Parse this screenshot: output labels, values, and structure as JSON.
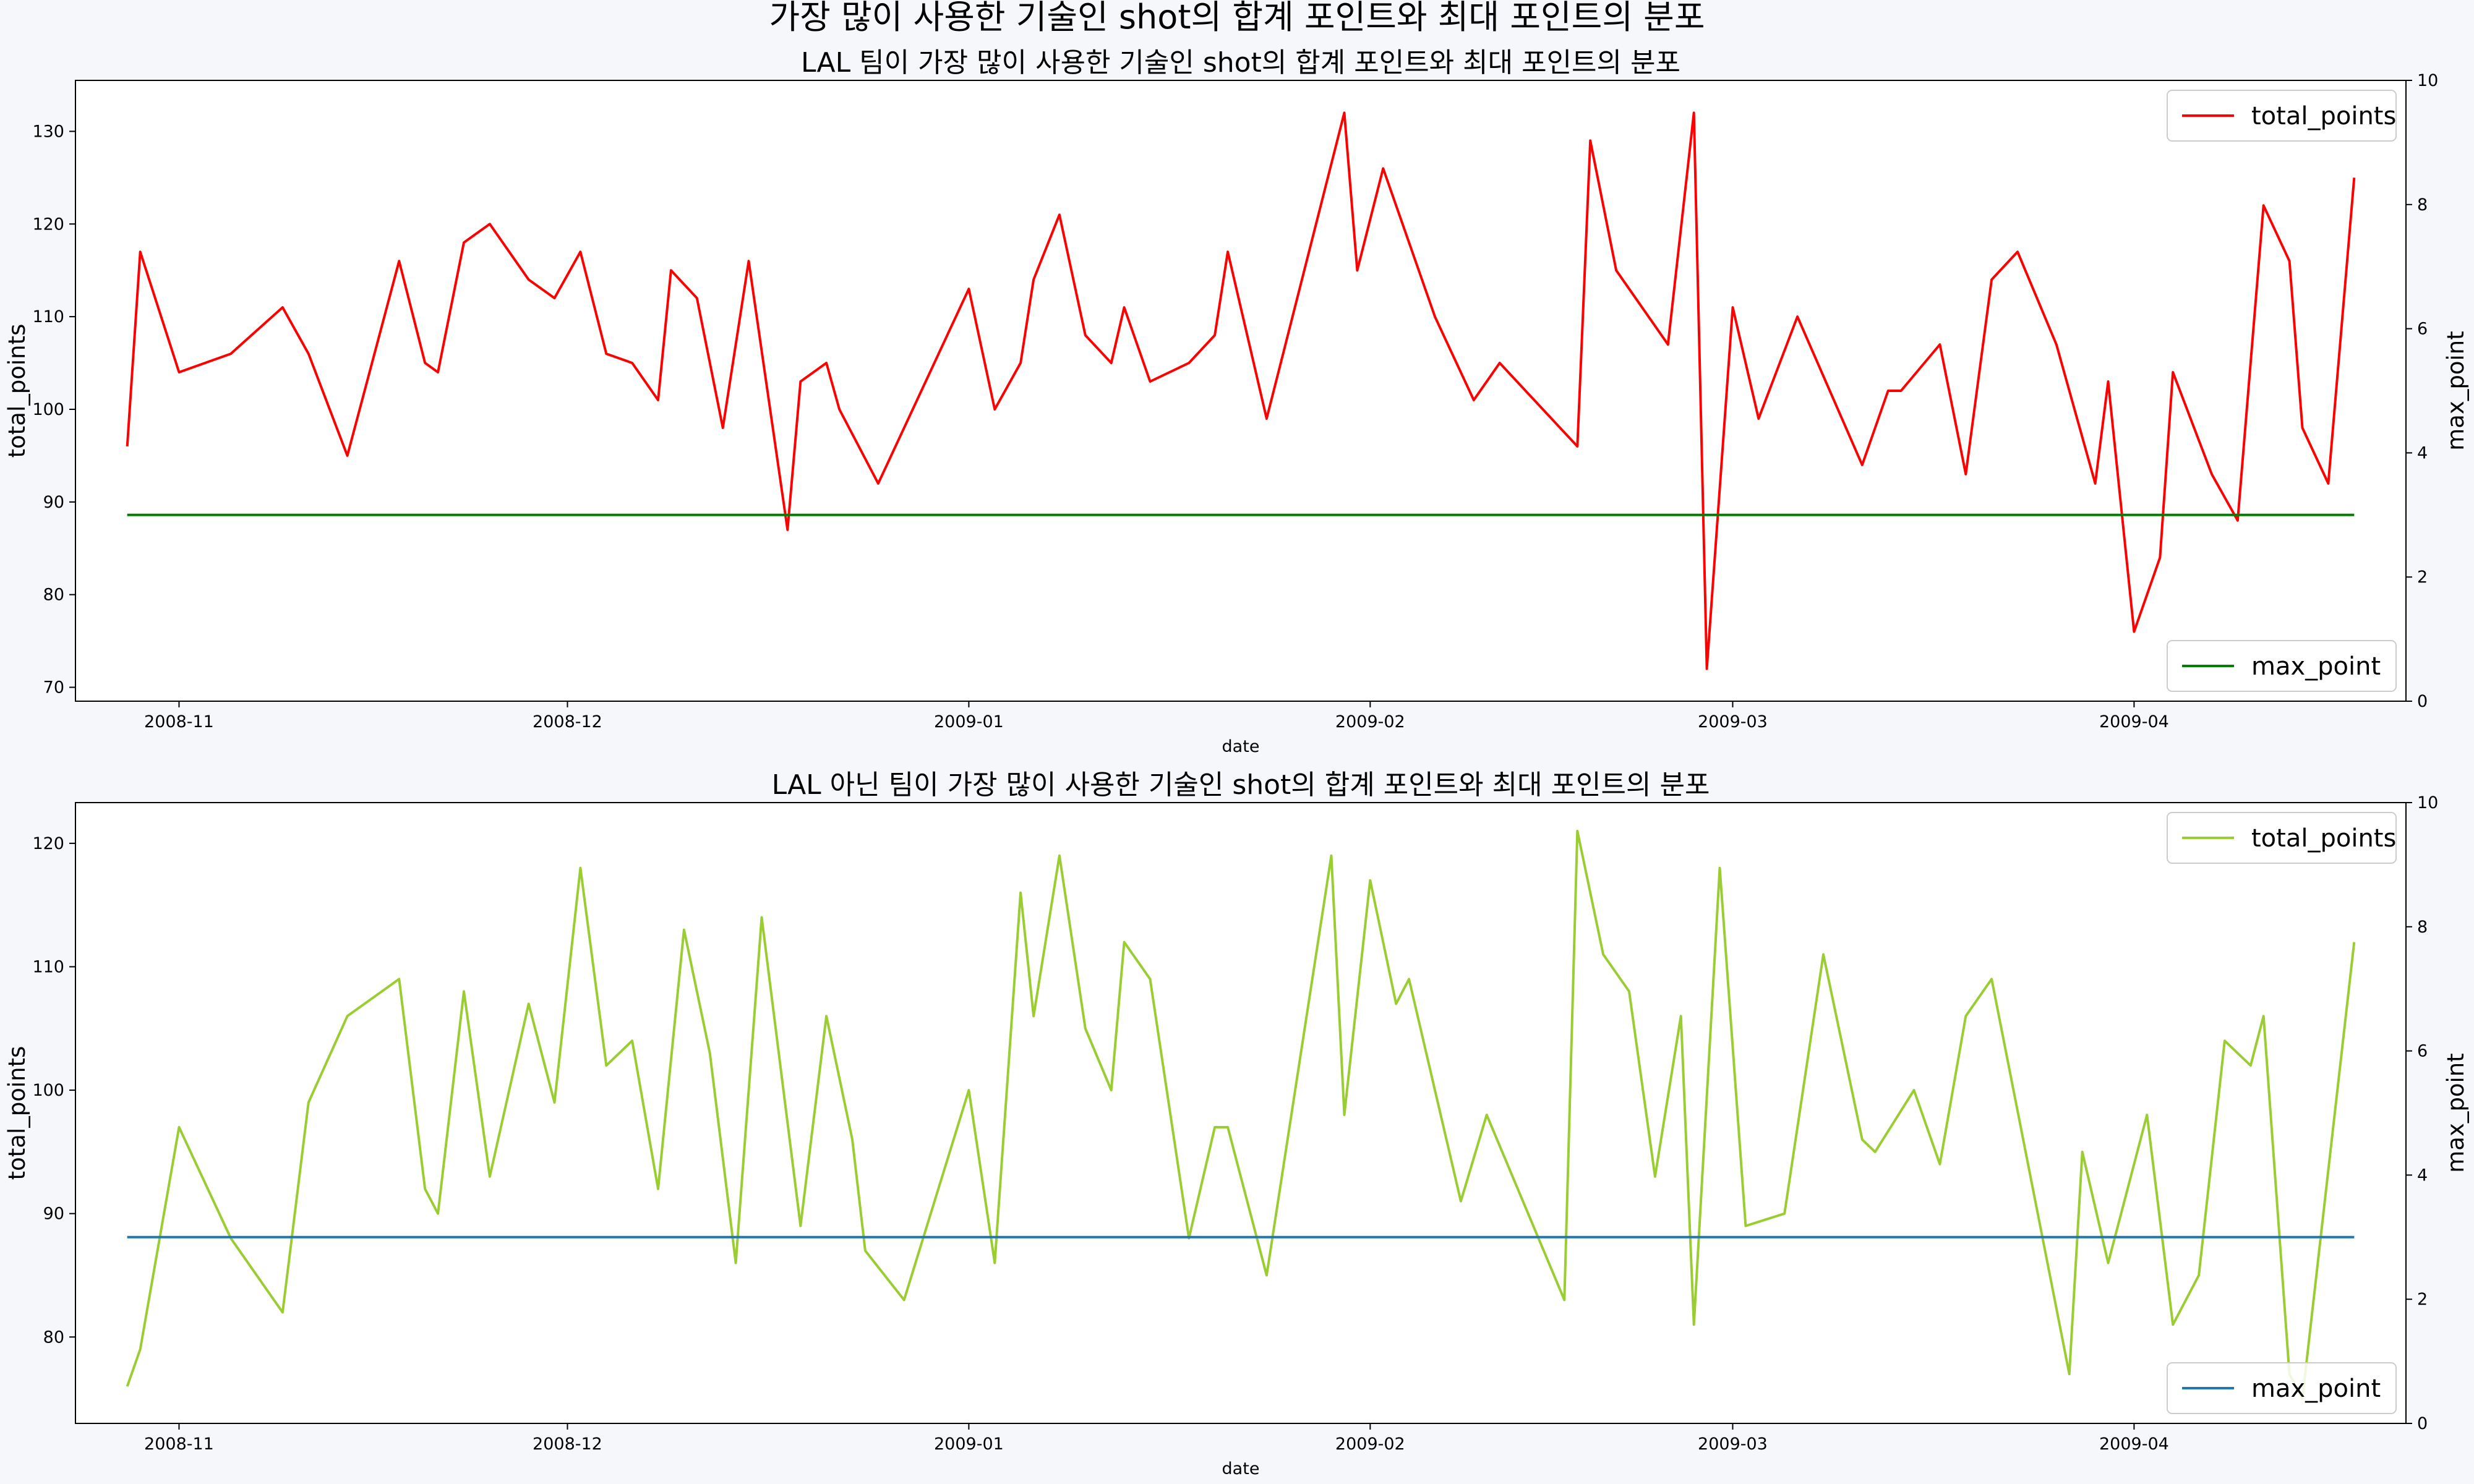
{
  "figure": {
    "suptitle": "가장 많이 사용한 기술인 shot의 합계 포인트와 최대 포인트의 분포",
    "background": "#f5f7fa"
  },
  "chart_data": [
    {
      "type": "line",
      "title": "LAL 팀이 가장 많이 사용한 기술인 shot의 합계 포인트와 최대 포인트의 분포",
      "xlabel": "date",
      "ylabel": "total_points",
      "ylabel_right": "max_point",
      "grid": false,
      "x_type": "date",
      "xlim": [
        "2008-10-24",
        "2009-04-22"
      ],
      "ylim": [
        68.5,
        135.5
      ],
      "yticks": [
        70,
        80,
        90,
        100,
        110,
        120,
        130
      ],
      "ylim_right": [
        0,
        10
      ],
      "yticks_right": [
        0,
        2,
        4,
        6,
        8,
        10
      ],
      "xticks": [
        {
          "date": "2008-11-01",
          "label": "2008-11"
        },
        {
          "date": "2008-12-01",
          "label": "2008-12"
        },
        {
          "date": "2009-01-01",
          "label": "2009-01"
        },
        {
          "date": "2009-02-01",
          "label": "2009-02"
        },
        {
          "date": "2009-03-01",
          "label": "2009-03"
        },
        {
          "date": "2009-04-01",
          "label": "2009-04"
        }
      ],
      "series": [
        {
          "name": "total_points",
          "axis": "left",
          "color": "#ff0000",
          "legend_position": "upper right",
          "points": [
            [
              "2008-10-28",
              96
            ],
            [
              "2008-10-29",
              117
            ],
            [
              "2008-11-01",
              104
            ],
            [
              "2008-11-05",
              106
            ],
            [
              "2008-11-09",
              111
            ],
            [
              "2008-11-11",
              106
            ],
            [
              "2008-11-14",
              95
            ],
            [
              "2008-11-18",
              116
            ],
            [
              "2008-11-20",
              105
            ],
            [
              "2008-11-21",
              104
            ],
            [
              "2008-11-23",
              118
            ],
            [
              "2008-11-25",
              120
            ],
            [
              "2008-11-28",
              114
            ],
            [
              "2008-11-30",
              112
            ],
            [
              "2008-12-02",
              117
            ],
            [
              "2008-12-04",
              106
            ],
            [
              "2008-12-06",
              105
            ],
            [
              "2008-12-08",
              101
            ],
            [
              "2008-12-09",
              115
            ],
            [
              "2008-12-11",
              112
            ],
            [
              "2008-12-13",
              98
            ],
            [
              "2008-12-15",
              116
            ],
            [
              "2008-12-18",
              87
            ],
            [
              "2008-12-19",
              103
            ],
            [
              "2008-12-21",
              105
            ],
            [
              "2008-12-22",
              100
            ],
            [
              "2008-12-25",
              92
            ],
            [
              "2009-01-01",
              113
            ],
            [
              "2009-01-03",
              100
            ],
            [
              "2009-01-05",
              105
            ],
            [
              "2009-01-06",
              114
            ],
            [
              "2009-01-08",
              121
            ],
            [
              "2009-01-10",
              108
            ],
            [
              "2009-01-12",
              105
            ],
            [
              "2009-01-13",
              111
            ],
            [
              "2009-01-15",
              103
            ],
            [
              "2009-01-18",
              105
            ],
            [
              "2009-01-20",
              108
            ],
            [
              "2009-01-21",
              117
            ],
            [
              "2009-01-24",
              99
            ],
            [
              "2009-01-30",
              132
            ],
            [
              "2009-01-31",
              115
            ],
            [
              "2009-02-02",
              126
            ],
            [
              "2009-02-06",
              110
            ],
            [
              "2009-02-09",
              101
            ],
            [
              "2009-02-11",
              105
            ],
            [
              "2009-02-17",
              96
            ],
            [
              "2009-02-18",
              129
            ],
            [
              "2009-02-20",
              115
            ],
            [
              "2009-02-24",
              107
            ],
            [
              "2009-02-26",
              132
            ],
            [
              "2009-02-27",
              72
            ],
            [
              "2009-03-01",
              111
            ],
            [
              "2009-03-03",
              99
            ],
            [
              "2009-03-06",
              110
            ],
            [
              "2009-03-11",
              94
            ],
            [
              "2009-03-13",
              102
            ],
            [
              "2009-03-14",
              102
            ],
            [
              "2009-03-17",
              107
            ],
            [
              "2009-03-19",
              93
            ],
            [
              "2009-03-21",
              114
            ],
            [
              "2009-03-23",
              117
            ],
            [
              "2009-03-26",
              107
            ],
            [
              "2009-03-29",
              92
            ],
            [
              "2009-03-30",
              103
            ],
            [
              "2009-04-01",
              76
            ],
            [
              "2009-04-03",
              84
            ],
            [
              "2009-04-04",
              104
            ],
            [
              "2009-04-07",
              93
            ],
            [
              "2009-04-09",
              88
            ],
            [
              "2009-04-11",
              122
            ],
            [
              "2009-04-13",
              116
            ],
            [
              "2009-04-14",
              98
            ],
            [
              "2009-04-16",
              92
            ],
            [
              "2009-04-18",
              125
            ]
          ]
        },
        {
          "name": "max_point",
          "axis": "right",
          "color": "#008000",
          "legend_position": "lower right",
          "points": [
            [
              "2008-10-28",
              3
            ],
            [
              "2009-04-18",
              3
            ]
          ]
        }
      ]
    },
    {
      "type": "line",
      "title": "LAL 아닌 팀이 가장 많이 사용한 기술인 shot의 합계 포인트와 최대 포인트의 분포",
      "xlabel": "date",
      "ylabel": "total_points",
      "ylabel_right": "max_point",
      "grid": false,
      "x_type": "date",
      "xlim": [
        "2008-10-24",
        "2009-04-22"
      ],
      "ylim": [
        73.0,
        123.3
      ],
      "yticks": [
        80,
        90,
        100,
        110,
        120
      ],
      "ylim_right": [
        0,
        10
      ],
      "yticks_right": [
        0,
        2,
        4,
        6,
        8,
        10
      ],
      "xticks": [
        {
          "date": "2008-11-01",
          "label": "2008-11"
        },
        {
          "date": "2008-12-01",
          "label": "2008-12"
        },
        {
          "date": "2009-01-01",
          "label": "2009-01"
        },
        {
          "date": "2009-02-01",
          "label": "2009-02"
        },
        {
          "date": "2009-03-01",
          "label": "2009-03"
        },
        {
          "date": "2009-04-01",
          "label": "2009-04"
        }
      ],
      "series": [
        {
          "name": "total_points",
          "axis": "left",
          "color": "#9acd32",
          "legend_position": "upper right",
          "points": [
            [
              "2008-10-28",
              76
            ],
            [
              "2008-10-29",
              79
            ],
            [
              "2008-11-01",
              97
            ],
            [
              "2008-11-05",
              88
            ],
            [
              "2008-11-09",
              82
            ],
            [
              "2008-11-11",
              99
            ],
            [
              "2008-11-14",
              106
            ],
            [
              "2008-11-18",
              109
            ],
            [
              "2008-11-20",
              92
            ],
            [
              "2008-11-21",
              90
            ],
            [
              "2008-11-23",
              108
            ],
            [
              "2008-11-25",
              93
            ],
            [
              "2008-11-28",
              107
            ],
            [
              "2008-11-30",
              99
            ],
            [
              "2008-12-02",
              118
            ],
            [
              "2008-12-04",
              102
            ],
            [
              "2008-12-06",
              104
            ],
            [
              "2008-12-08",
              92
            ],
            [
              "2008-12-10",
              113
            ],
            [
              "2008-12-12",
              103
            ],
            [
              "2008-12-14",
              86
            ],
            [
              "2008-12-16",
              114
            ],
            [
              "2008-12-19",
              89
            ],
            [
              "2008-12-21",
              106
            ],
            [
              "2008-12-23",
              96
            ],
            [
              "2008-12-24",
              87
            ],
            [
              "2008-12-27",
              83
            ],
            [
              "2009-01-01",
              100
            ],
            [
              "2009-01-03",
              86
            ],
            [
              "2009-01-05",
              116
            ],
            [
              "2009-01-06",
              106
            ],
            [
              "2009-01-08",
              119
            ],
            [
              "2009-01-10",
              105
            ],
            [
              "2009-01-12",
              100
            ],
            [
              "2009-01-13",
              112
            ],
            [
              "2009-01-15",
              109
            ],
            [
              "2009-01-18",
              88
            ],
            [
              "2009-01-20",
              97
            ],
            [
              "2009-01-21",
              97
            ],
            [
              "2009-01-24",
              85
            ],
            [
              "2009-01-29",
              119
            ],
            [
              "2009-01-30",
              98
            ],
            [
              "2009-02-01",
              117
            ],
            [
              "2009-02-03",
              107
            ],
            [
              "2009-02-04",
              109
            ],
            [
              "2009-02-08",
              91
            ],
            [
              "2009-02-10",
              98
            ],
            [
              "2009-02-16",
              83
            ],
            [
              "2009-02-17",
              121
            ],
            [
              "2009-02-19",
              111
            ],
            [
              "2009-02-21",
              108
            ],
            [
              "2009-02-23",
              93
            ],
            [
              "2009-02-25",
              106
            ],
            [
              "2009-02-26",
              81
            ],
            [
              "2009-02-28",
              118
            ],
            [
              "2009-03-02",
              89
            ],
            [
              "2009-03-05",
              90
            ],
            [
              "2009-03-08",
              111
            ],
            [
              "2009-03-11",
              96
            ],
            [
              "2009-03-12",
              95
            ],
            [
              "2009-03-15",
              100
            ],
            [
              "2009-03-17",
              94
            ],
            [
              "2009-03-19",
              106
            ],
            [
              "2009-03-21",
              109
            ],
            [
              "2009-03-27",
              77
            ],
            [
              "2009-03-28",
              95
            ],
            [
              "2009-03-30",
              86
            ],
            [
              "2009-04-02",
              98
            ],
            [
              "2009-04-04",
              81
            ],
            [
              "2009-04-06",
              85
            ],
            [
              "2009-04-08",
              104
            ],
            [
              "2009-04-10",
              102
            ],
            [
              "2009-04-11",
              106
            ],
            [
              "2009-04-13",
              77
            ],
            [
              "2009-04-14",
              75
            ],
            [
              "2009-04-18",
              112
            ]
          ]
        },
        {
          "name": "max_point",
          "axis": "right",
          "color": "#1f77b4",
          "legend_position": "lower right",
          "points": [
            [
              "2008-10-28",
              3
            ],
            [
              "2009-04-18",
              3
            ]
          ]
        }
      ]
    }
  ]
}
